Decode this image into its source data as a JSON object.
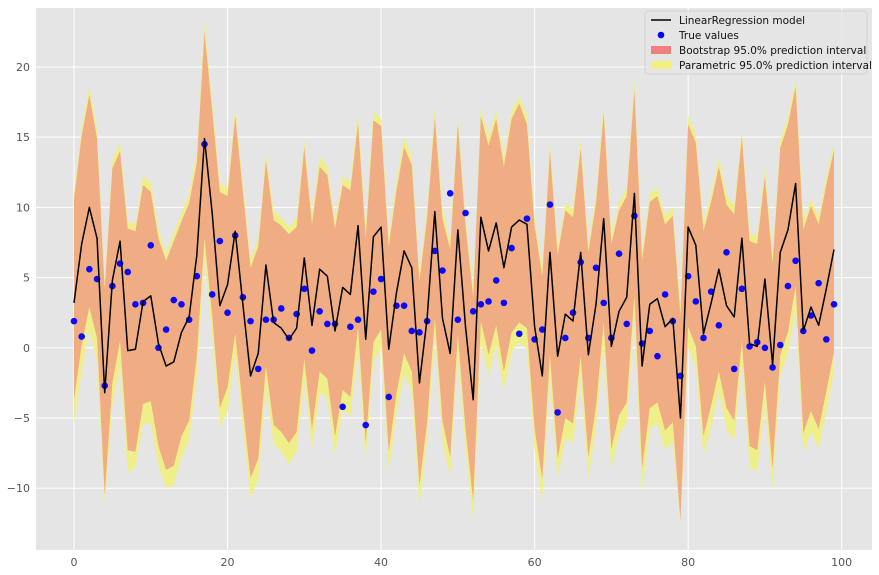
{
  "colors": {
    "background": "#e5e5e5",
    "grid": "#ffffff",
    "model_line": "#000000",
    "true_points": "#0000ff",
    "bootstrap_fill": "#f08080",
    "parametric_fill": "#f0f080",
    "tick_text": "#555555"
  },
  "chart_data": {
    "type": "line",
    "title": "",
    "xlabel": "",
    "ylabel": "",
    "xlim": [
      -4.95,
      103.95
    ],
    "ylim": [
      -14.4,
      24.2
    ],
    "xticks": [
      0,
      20,
      40,
      60,
      80,
      100
    ],
    "yticks": [
      -10,
      -5,
      0,
      5,
      10,
      15,
      20
    ],
    "xtick_labels": [
      "0",
      "20",
      "40",
      "60",
      "80",
      "100"
    ],
    "ytick_labels": [
      "−10",
      "−5",
      "0",
      "5",
      "10",
      "15",
      "20"
    ],
    "grid": true,
    "legend_position": "top-right",
    "legend": [
      {
        "label": "LinearRegression model",
        "kind": "line",
        "color": "#000000"
      },
      {
        "label": "True values",
        "kind": "dot",
        "color": "#0000ff"
      },
      {
        "label": "Bootstrap 95.0% prediction interval",
        "kind": "patch",
        "color": "#f08080"
      },
      {
        "label": "Parametric 95.0% prediction interval",
        "kind": "patch",
        "color": "#f0f080"
      }
    ],
    "x": [
      0,
      1,
      2,
      3,
      4,
      5,
      6,
      7,
      8,
      9,
      10,
      11,
      12,
      13,
      14,
      15,
      16,
      17,
      18,
      19,
      20,
      21,
      22,
      23,
      24,
      25,
      26,
      27,
      28,
      29,
      30,
      31,
      32,
      33,
      34,
      35,
      36,
      37,
      38,
      39,
      40,
      41,
      42,
      43,
      44,
      45,
      46,
      47,
      48,
      49,
      50,
      51,
      52,
      53,
      54,
      55,
      56,
      57,
      58,
      59,
      60,
      61,
      62,
      63,
      64,
      65,
      66,
      67,
      68,
      69,
      70,
      71,
      72,
      73,
      74,
      75,
      76,
      77,
      78,
      79,
      80,
      81,
      82,
      83,
      84,
      85,
      86,
      87,
      88,
      89,
      90,
      91,
      92,
      93,
      94,
      95,
      96,
      97,
      98,
      99
    ],
    "model": [
      3.2,
      7.4,
      10.0,
      7.8,
      -3.2,
      4.8,
      7.6,
      -0.2,
      -0.1,
      3.3,
      3.7,
      0.3,
      -1.3,
      -1.0,
      1.1,
      2.2,
      6.6,
      14.9,
      9.6,
      3.0,
      4.5,
      8.3,
      3.1,
      -2.0,
      -0.4,
      5.9,
      1.8,
      1.4,
      0.6,
      1.4,
      6.4,
      1.6,
      5.6,
      5.1,
      1.2,
      4.3,
      3.8,
      8.7,
      0.6,
      7.9,
      8.6,
      -0.1,
      3.9,
      6.9,
      5.7,
      -2.5,
      2.1,
      9.7,
      2.1,
      -0.4,
      8.4,
      1.5,
      -3.7,
      9.3,
      6.9,
      8.9,
      5.7,
      8.6,
      9.1,
      8.8,
      1.5,
      -2.0,
      6.8,
      -0.6,
      2.4,
      1.9,
      6.8,
      -0.5,
      3.1,
      9.2,
      0.1,
      2.6,
      3.6,
      11.0,
      -1.3,
      3.1,
      3.5,
      1.5,
      2.1,
      -5.0,
      8.6,
      7.3,
      1.0,
      3.2,
      5.6,
      3.0,
      2.2,
      7.8,
      0.3,
      0.1,
      4.9,
      -1.2,
      6.8,
      8.4,
      11.7,
      1.2,
      2.9,
      1.6,
      4.2,
      7.0
    ],
    "true_values": [
      1.9,
      0.8,
      5.6,
      4.9,
      -2.7,
      4.4,
      6.0,
      5.4,
      3.1,
      3.2,
      7.3,
      0.0,
      1.3,
      3.4,
      3.1,
      2.0,
      5.1,
      14.5,
      3.8,
      7.6,
      2.5,
      8.0,
      3.6,
      1.9,
      -1.5,
      2.0,
      2.0,
      2.8,
      0.7,
      2.4,
      4.2,
      -0.2,
      2.6,
      1.7,
      1.7,
      -4.2,
      1.5,
      2.0,
      -5.5,
      4.0,
      4.9,
      -3.5,
      3.0,
      3.0,
      1.2,
      1.1,
      1.9,
      6.9,
      5.5,
      11.0,
      2.0,
      9.6,
      2.6,
      3.1,
      3.3,
      4.8,
      3.2,
      7.1,
      1.0,
      9.2,
      0.6,
      1.3,
      10.2,
      -4.6,
      0.7,
      2.5,
      6.1,
      0.7,
      5.7,
      3.2,
      0.7,
      6.7,
      1.7,
      9.4,
      0.3,
      1.2,
      -0.6,
      3.8,
      1.9,
      -2.0,
      5.1,
      3.3,
      0.7,
      4.0,
      1.6,
      6.8,
      -1.5,
      4.2,
      0.1,
      0.4,
      0.0,
      -1.4,
      0.2,
      4.4,
      6.2,
      1.2,
      2.3,
      4.6,
      0.6,
      3.1
    ],
    "bootstrap_upper": [
      10.6,
      15.1,
      18.0,
      14.9,
      4.2,
      12.8,
      14.0,
      8.5,
      8.3,
      11.6,
      11.1,
      7.8,
      6.2,
      7.6,
      9.0,
      10.3,
      13.2,
      22.5,
      16.9,
      11.1,
      10.8,
      16.5,
      11.1,
      5.7,
      7.2,
      13.3,
      9.1,
      8.7,
      8.1,
      8.6,
      14.3,
      8.8,
      12.9,
      12.3,
      8.5,
      11.6,
      11.2,
      16.0,
      7.8,
      16.2,
      15.8,
      7.2,
      11.2,
      14.3,
      13.0,
      4.7,
      9.3,
      16.4,
      9.2,
      7.0,
      15.9,
      8.7,
      3.6,
      16.5,
      14.4,
      16.3,
      12.9,
      16.3,
      17.4,
      15.9,
      8.7,
      5.1,
      14.0,
      6.6,
      9.8,
      9.3,
      14.2,
      6.8,
      10.3,
      16.7,
      7.4,
      9.8,
      10.8,
      18.4,
      6.2,
      10.4,
      10.8,
      8.8,
      9.4,
      2.3,
      15.9,
      14.6,
      8.3,
      10.4,
      12.9,
      10.2,
      9.5,
      15.0,
      7.6,
      7.4,
      12.2,
      6.0,
      14.2,
      15.9,
      18.6,
      8.4,
      10.1,
      8.8,
      11.6,
      14.1
    ],
    "bootstrap_lower": [
      -3.7,
      0.2,
      2.9,
      0.7,
      -10.5,
      -2.5,
      0.5,
      -7.3,
      -7.4,
      -4.0,
      -3.8,
      -7.0,
      -8.7,
      -8.4,
      -6.3,
      -5.2,
      -0.6,
      7.8,
      2.3,
      -4.3,
      -2.8,
      1.0,
      -4.3,
      -9.3,
      -7.9,
      -1.3,
      -5.5,
      -6.0,
      -6.8,
      -6.0,
      -0.8,
      -5.8,
      -1.7,
      -2.2,
      -6.3,
      -3.0,
      -3.5,
      1.5,
      -6.8,
      0.4,
      1.3,
      -7.4,
      -3.3,
      -0.4,
      -1.7,
      -9.8,
      -5.3,
      2.1,
      -5.2,
      -7.8,
      0.9,
      -5.8,
      -10.9,
      1.9,
      -0.5,
      1.6,
      -1.7,
      1.1,
      1.8,
      1.4,
      -5.8,
      -9.3,
      -0.5,
      -7.9,
      -5.0,
      -5.4,
      -0.6,
      -7.8,
      -4.2,
      1.8,
      -7.2,
      -4.8,
      -3.9,
      3.8,
      -8.6,
      -4.3,
      -3.9,
      -5.9,
      -5.3,
      -12.3,
      1.5,
      0.1,
      -6.3,
      -4.1,
      -1.7,
      -4.3,
      -5.2,
      0.5,
      -7.0,
      -7.3,
      -2.4,
      -8.6,
      -0.5,
      1.1,
      4.4,
      -6.1,
      -4.5,
      -5.8,
      -3.1,
      -0.3
    ],
    "parametric_upper": [
      11.1,
      15.6,
      18.6,
      15.5,
      4.6,
      13.4,
      14.6,
      9.0,
      8.8,
      12.2,
      11.8,
      8.4,
      6.7,
      8.2,
      9.6,
      11.0,
      13.9,
      23.2,
      17.5,
      11.7,
      11.4,
      17.1,
      11.7,
      6.3,
      7.8,
      13.9,
      9.7,
      9.3,
      8.6,
      9.3,
      14.8,
      9.4,
      13.6,
      12.9,
      9.0,
      12.2,
      11.8,
      16.7,
      8.4,
      16.8,
      16.3,
      7.8,
      11.8,
      15.0,
      13.6,
      5.3,
      9.9,
      17.0,
      9.9,
      7.6,
      16.5,
      9.2,
      4.2,
      17.1,
      15.0,
      16.9,
      13.5,
      16.9,
      17.9,
      16.5,
      9.3,
      5.8,
      14.6,
      7.2,
      10.3,
      9.9,
      14.8,
      7.4,
      10.9,
      17.3,
      8.0,
      10.4,
      11.4,
      19.1,
      6.8,
      11.0,
      11.4,
      9.4,
      10.0,
      3.0,
      16.5,
      15.2,
      8.9,
      11.0,
      13.5,
      10.9,
      10.1,
      15.5,
      8.2,
      8.0,
      12.9,
      6.6,
      14.8,
      16.4,
      19.2,
      9.0,
      10.6,
      9.3,
      12.2,
      14.6
    ],
    "parametric_lower": [
      -5.4,
      -1.6,
      1.4,
      -1.1,
      -11.2,
      -4.1,
      -1.3,
      -8.9,
      -8.5,
      -5.4,
      -5.4,
      -8.4,
      -10.0,
      -9.8,
      -7.8,
      -6.6,
      -2.1,
      6.3,
      0.9,
      -5.6,
      -4.6,
      -0.3,
      -5.7,
      -10.7,
      -9.4,
      -2.8,
      -6.8,
      -7.4,
      -8.3,
      -7.4,
      -2.3,
      -7.3,
      -3.2,
      -3.6,
      -7.7,
      -4.4,
      -4.9,
      -0.1,
      -8.1,
      -1.0,
      0.0,
      -8.8,
      -4.7,
      -1.8,
      -3.2,
      -11.3,
      -6.6,
      0.8,
      -6.6,
      -9.2,
      -0.5,
      -7.2,
      -12.4,
      0.5,
      -2.0,
      0.2,
      -3.1,
      -0.3,
      0.4,
      -0.1,
      -7.3,
      -10.9,
      -2.0,
      -9.4,
      -6.4,
      -6.8,
      -2.1,
      -9.3,
      -5.6,
      0.3,
      -8.7,
      -6.2,
      -5.3,
      2.2,
      -10.2,
      -5.8,
      -5.4,
      -7.3,
      -6.7,
      -12.5,
      0.0,
      -1.4,
      -7.7,
      -5.6,
      -3.1,
      -5.8,
      -6.6,
      -0.9,
      -8.5,
      -8.8,
      -3.9,
      -10.1,
      -2.0,
      -0.4,
      2.9,
      -7.5,
      -6.0,
      -7.2,
      -4.6,
      -1.6
    ]
  }
}
